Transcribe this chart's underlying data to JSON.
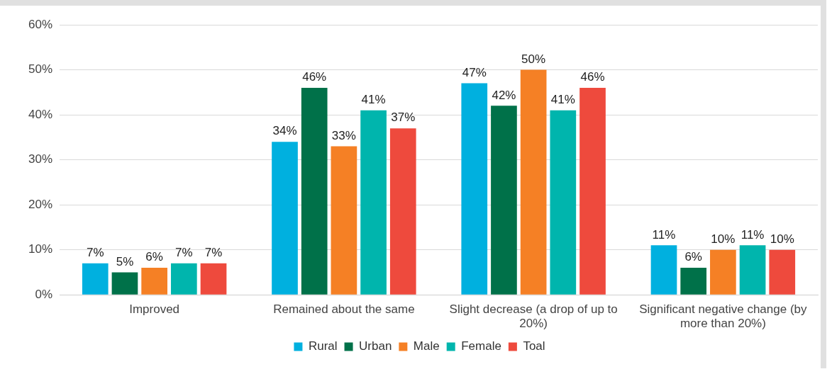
{
  "chart_data": {
    "type": "bar",
    "categories": [
      "Improved",
      "Remained about the same",
      "Slight decrease (a drop of up to 20%)",
      "Significant negative change (by more than 20%)"
    ],
    "series": [
      {
        "name": "Rural",
        "color": "#00b0df",
        "values": [
          7,
          34,
          47,
          11
        ],
        "value_labels": [
          "7%",
          "34%",
          "47%",
          "11%"
        ]
      },
      {
        "name": "Urban",
        "color": "#007149",
        "values": [
          5,
          46,
          42,
          6
        ],
        "value_labels": [
          "5%",
          "46%",
          "42%",
          "6%"
        ]
      },
      {
        "name": "Male",
        "color": "#f58025",
        "values": [
          6,
          33,
          50,
          10
        ],
        "value_labels": [
          "6%",
          "33%",
          "50%",
          "10%"
        ]
      },
      {
        "name": "Female",
        "color": "#00b5ad",
        "values": [
          7,
          41,
          41,
          11
        ],
        "value_labels": [
          "7%",
          "41%",
          "41%",
          "11%"
        ]
      },
      {
        "name": "Toal",
        "color": "#ee4a3d",
        "values": [
          7,
          37,
          46,
          10
        ],
        "value_labels": [
          "7%",
          "37%",
          "46%",
          "10%"
        ]
      }
    ],
    "ylim": [
      0,
      60
    ],
    "yticks": [
      {
        "value": 0,
        "label": "0%"
      },
      {
        "value": 10,
        "label": "10%"
      },
      {
        "value": 20,
        "label": "20%"
      },
      {
        "value": 30,
        "label": "30%"
      },
      {
        "value": 40,
        "label": "40%"
      },
      {
        "value": 50,
        "label": "50%"
      },
      {
        "value": 60,
        "label": "60%"
      }
    ],
    "grid": "y",
    "legend": "bottom"
  }
}
